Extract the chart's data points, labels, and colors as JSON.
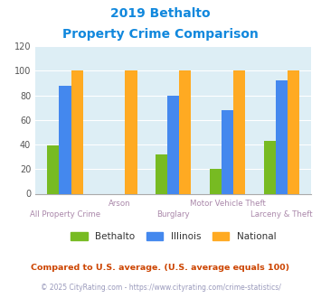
{
  "title_line1": "2019 Bethalto",
  "title_line2": "Property Crime Comparison",
  "categories": [
    "All Property Crime",
    "Arson",
    "Burglary",
    "Motor Vehicle Theft",
    "Larceny & Theft"
  ],
  "series": {
    "Bethalto": [
      39,
      0,
      32,
      20,
      43
    ],
    "Illinois": [
      88,
      0,
      80,
      68,
      92
    ],
    "National": [
      100,
      100,
      100,
      100,
      100
    ]
  },
  "colors": {
    "Bethalto": "#77bb22",
    "Illinois": "#4488ee",
    "National": "#ffaa22"
  },
  "ylim": [
    0,
    120
  ],
  "yticks": [
    0,
    20,
    40,
    60,
    80,
    100,
    120
  ],
  "title_color": "#1188dd",
  "footnote1": "Compared to U.S. average. (U.S. average equals 100)",
  "footnote2": "© 2025 CityRating.com - https://www.cityrating.com/crime-statistics/",
  "footnote1_color": "#cc4400",
  "footnote2_color": "#9999bb",
  "footnote2_link_color": "#4488dd",
  "xlabel_color": "#aa88aa",
  "bg_color": "#ddeef5",
  "fig_bg": "#ffffff",
  "bar_width": 0.22
}
